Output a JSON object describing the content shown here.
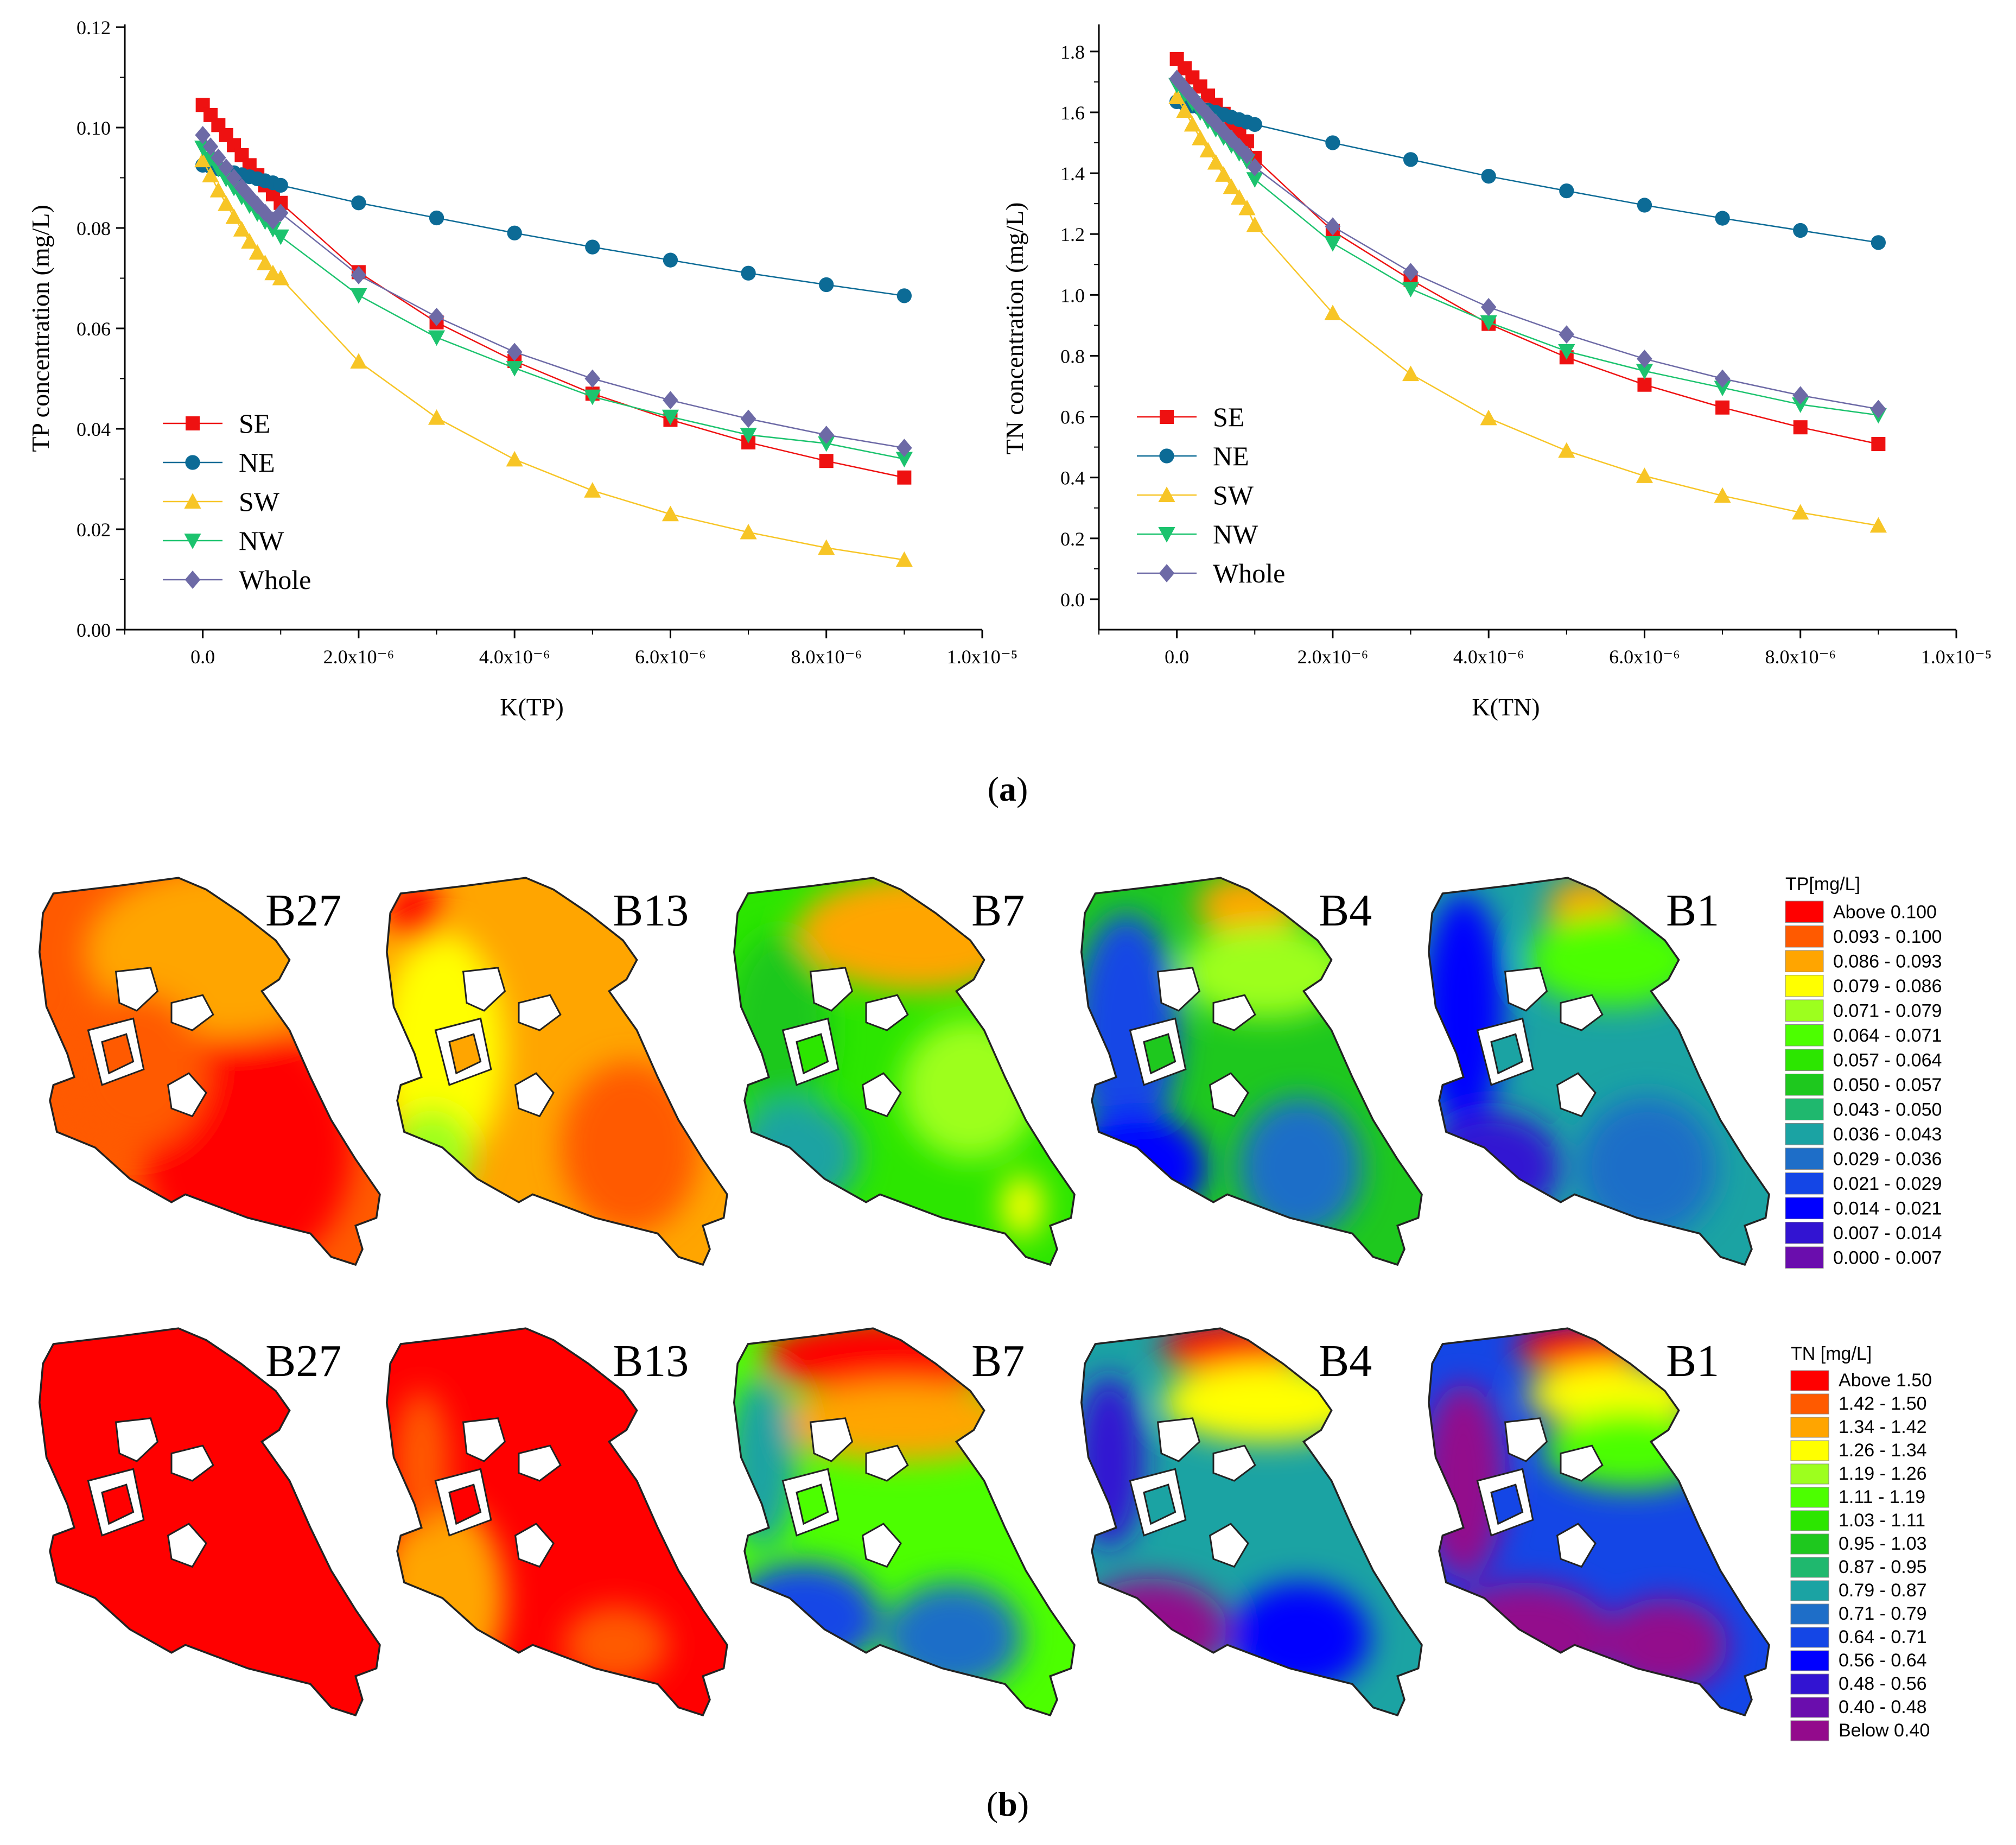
{
  "panel_a_label": "a",
  "panel_b_label": "b",
  "colors": {
    "SE": "#ee1111",
    "NE": "#0c6b96",
    "SW": "#f7c526",
    "NW": "#1cc36e",
    "Whole": "#6d6aa6"
  },
  "chart_data": [
    {
      "type": "line",
      "ylabel": "TP concentration (mg/L)",
      "xlabel": "K(TP)",
      "xlim": [
        -1e-06,
        1e-05
      ],
      "ylim": [
        0,
        0.12
      ],
      "xticks": [
        0,
        2e-06,
        4e-06,
        6e-06,
        8e-06,
        1e-05
      ],
      "xtick_labels": [
        "0.0",
        "2.0x10⁻⁶",
        "4.0x10⁻⁶",
        "6.0x10⁻⁶",
        "8.0x10⁻⁶",
        "1.0x10⁻⁵"
      ],
      "yticks": [
        0,
        0.02,
        0.04,
        0.06,
        0.08,
        0.1,
        0.12
      ],
      "ytick_labels": [
        "0.00",
        "0.02",
        "0.04",
        "0.06",
        "0.08",
        "0.10",
        "0.12"
      ],
      "x": [
        0,
        1e-07,
        2e-07,
        3e-07,
        4e-07,
        5e-07,
        6e-07,
        7e-07,
        8e-07,
        9e-07,
        1e-06,
        2e-06,
        3e-06,
        4e-06,
        5e-06,
        6e-06,
        7e-06,
        8e-06,
        9e-06
      ],
      "series": [
        {
          "name": "SE",
          "marker": "square",
          "values": [
            0.1045,
            0.1025,
            0.1005,
            0.0985,
            0.0965,
            0.0945,
            0.0925,
            0.0905,
            0.0885,
            0.0867,
            0.085,
            0.0712,
            0.0612,
            0.0535,
            0.047,
            0.0418,
            0.0373,
            0.0336,
            0.0303
          ]
        },
        {
          "name": "NE",
          "marker": "circle",
          "values": [
            0.0925,
            0.0922,
            0.0918,
            0.0914,
            0.091,
            0.0906,
            0.0902,
            0.0898,
            0.0894,
            0.089,
            0.0885,
            0.085,
            0.082,
            0.079,
            0.0762,
            0.0736,
            0.071,
            0.0687,
            0.0665
          ]
        },
        {
          "name": "SW",
          "marker": "triangle-up",
          "values": [
            0.0935,
            0.0905,
            0.0875,
            0.0848,
            0.0822,
            0.0797,
            0.0773,
            0.0751,
            0.073,
            0.071,
            0.07,
            0.0534,
            0.0422,
            0.0339,
            0.0277,
            0.023,
            0.0194,
            0.0163,
            0.0139
          ]
        },
        {
          "name": "NW",
          "marker": "triangle-down",
          "values": [
            0.096,
            0.0938,
            0.0918,
            0.0898,
            0.088,
            0.0862,
            0.0845,
            0.0829,
            0.0813,
            0.0798,
            0.0783,
            0.0666,
            0.0582,
            0.0521,
            0.0464,
            0.0424,
            0.0388,
            0.0371,
            0.034
          ]
        },
        {
          "name": "Whole",
          "marker": "diamond",
          "values": [
            0.0985,
            0.0962,
            0.094,
            0.092,
            0.09,
            0.0881,
            0.0863,
            0.0846,
            0.083,
            0.0815,
            0.083,
            0.0706,
            0.0623,
            0.0553,
            0.05,
            0.0457,
            0.042,
            0.0388,
            0.0362
          ]
        }
      ]
    },
    {
      "type": "line",
      "ylabel": "TN concentration (mg/L)",
      "xlabel": "K(TN)",
      "xlim": [
        -1e-06,
        1e-05
      ],
      "ylim": [
        -0.1,
        1.88
      ],
      "xticks": [
        0,
        2e-06,
        4e-06,
        6e-06,
        8e-06,
        1e-05
      ],
      "xtick_labels": [
        "0.0",
        "2.0x10⁻⁶",
        "4.0x10⁻⁶",
        "6.0x10⁻⁶",
        "8.0x10⁻⁶",
        "1.0x10⁻⁵"
      ],
      "yticks": [
        0,
        0.2,
        0.4,
        0.6,
        0.8,
        1.0,
        1.2,
        1.4,
        1.6,
        1.8
      ],
      "ytick_labels": [
        "0.0",
        "0.2",
        "0.4",
        "0.6",
        "0.8",
        "1.0",
        "1.2",
        "1.4",
        "1.6",
        "1.8"
      ],
      "x": [
        0,
        1e-07,
        2e-07,
        3e-07,
        4e-07,
        5e-07,
        6e-07,
        7e-07,
        8e-07,
        9e-07,
        1e-06,
        2e-06,
        3e-06,
        4e-06,
        5e-06,
        6e-06,
        7e-06,
        8e-06,
        9e-06
      ],
      "series": [
        {
          "name": "SE",
          "marker": "square",
          "values": [
            1.775,
            1.745,
            1.715,
            1.685,
            1.655,
            1.625,
            1.595,
            1.565,
            1.535,
            1.505,
            1.45,
            1.21,
            1.05,
            0.905,
            0.795,
            0.705,
            0.63,
            0.565,
            0.51
          ]
        },
        {
          "name": "NE",
          "marker": "circle",
          "values": [
            1.635,
            1.628,
            1.621,
            1.614,
            1.607,
            1.6,
            1.592,
            1.584,
            1.576,
            1.568,
            1.56,
            1.5,
            1.445,
            1.39,
            1.342,
            1.295,
            1.252,
            1.212,
            1.172
          ]
        },
        {
          "name": "SW",
          "marker": "triangle-up",
          "values": [
            1.65,
            1.605,
            1.56,
            1.515,
            1.475,
            1.435,
            1.395,
            1.355,
            1.32,
            1.285,
            1.23,
            0.94,
            0.74,
            0.595,
            0.488,
            0.405,
            0.34,
            0.285,
            0.242
          ]
        },
        {
          "name": "NW",
          "marker": "triangle-down",
          "values": [
            1.69,
            1.66,
            1.63,
            1.6,
            1.572,
            1.545,
            1.518,
            1.492,
            1.466,
            1.44,
            1.38,
            1.17,
            1.02,
            0.91,
            0.815,
            0.75,
            0.695,
            0.64,
            0.605
          ]
        },
        {
          "name": "Whole",
          "marker": "diamond",
          "values": [
            1.71,
            1.68,
            1.65,
            1.62,
            1.592,
            1.565,
            1.538,
            1.512,
            1.486,
            1.46,
            1.42,
            1.225,
            1.075,
            0.96,
            0.87,
            0.79,
            0.725,
            0.67,
            0.625
          ]
        }
      ]
    }
  ],
  "maps": {
    "row_labels": [
      "B27",
      "B13",
      "B7",
      "B4",
      "B1"
    ],
    "tp_legend": {
      "title": "TP[mg/L]",
      "items": [
        {
          "label": "Above  0.100",
          "color": "#ff0000"
        },
        {
          "label": "0.093 - 0.100",
          "color": "#ff5a00"
        },
        {
          "label": "0.086 - 0.093",
          "color": "#ffa500"
        },
        {
          "label": "0.079 - 0.086",
          "color": "#ffff00"
        },
        {
          "label": "0.071 - 0.079",
          "color": "#9dff1e"
        },
        {
          "label": "0.064 - 0.071",
          "color": "#4cff00"
        },
        {
          "label": "0.057 - 0.064",
          "color": "#2ce600"
        },
        {
          "label": "0.050 - 0.057",
          "color": "#1ec81e"
        },
        {
          "label": "0.043 - 0.050",
          "color": "#1fb86e"
        },
        {
          "label": "0.036 - 0.043",
          "color": "#1ba3a3"
        },
        {
          "label": "0.029 - 0.036",
          "color": "#1e6ec8"
        },
        {
          "label": "0.021 - 0.029",
          "color": "#1446e6"
        },
        {
          "label": "0.014 - 0.021",
          "color": "#0000ff"
        },
        {
          "label": "0.007 - 0.014",
          "color": "#3214d2"
        },
        {
          "label": "0.000 - 0.007",
          "color": "#6a0dad"
        }
      ]
    },
    "tn_legend": {
      "title": "TN [mg/L]",
      "items": [
        {
          "label": "Above 1.50",
          "color": "#ff0000"
        },
        {
          "label": "1.42 - 1.50",
          "color": "#ff5a00"
        },
        {
          "label": "1.34 - 1.42",
          "color": "#ffa500"
        },
        {
          "label": "1.26 - 1.34",
          "color": "#ffff00"
        },
        {
          "label": "1.19 - 1.26",
          "color": "#9dff1e"
        },
        {
          "label": "1.11 - 1.19",
          "color": "#4cff00"
        },
        {
          "label": "1.03 - 1.11",
          "color": "#2ce600"
        },
        {
          "label": "0.95 - 1.03",
          "color": "#1ec81e"
        },
        {
          "label": "0.87 - 0.95",
          "color": "#1fb86e"
        },
        {
          "label": "0.79 - 0.87",
          "color": "#1ba3a3"
        },
        {
          "label": "0.71 - 0.79",
          "color": "#1e6ec8"
        },
        {
          "label": "0.64 - 0.71",
          "color": "#1446e6"
        },
        {
          "label": "0.56 - 0.64",
          "color": "#0000ff"
        },
        {
          "label": "0.48 - 0.56",
          "color": "#3214d2"
        },
        {
          "label": "0.40 - 0.48",
          "color": "#6a0dad"
        },
        {
          "label": "Below 0.40",
          "color": "#930a8c"
        }
      ]
    },
    "tp_fields": [
      {
        "base": "#ff5a00",
        "blobs": [
          [
            "#ff0000",
            0.62,
            0.7,
            0.3,
            0.32
          ],
          [
            "#ffa500",
            0.55,
            0.2,
            0.4,
            0.22
          ],
          [
            "#ff5a00",
            0.3,
            0.5,
            0.2,
            0.2
          ]
        ]
      },
      {
        "base": "#ffa500",
        "blobs": [
          [
            "#ffff00",
            0.18,
            0.45,
            0.18,
            0.3
          ],
          [
            "#9dff1e",
            0.15,
            0.72,
            0.12,
            0.12
          ],
          [
            "#ff5a00",
            0.72,
            0.7,
            0.2,
            0.22
          ],
          [
            "#ff0000",
            0.1,
            0.1,
            0.08,
            0.08
          ]
        ]
      },
      {
        "base": "#2ce600",
        "blobs": [
          [
            "#ffa500",
            0.55,
            0.15,
            0.35,
            0.15
          ],
          [
            "#1ec81e",
            0.15,
            0.4,
            0.15,
            0.25
          ],
          [
            "#1ba3a3",
            0.2,
            0.72,
            0.18,
            0.14
          ],
          [
            "#9dff1e",
            0.7,
            0.55,
            0.2,
            0.18
          ],
          [
            "#ffff00",
            0.85,
            0.85,
            0.06,
            0.08
          ]
        ]
      },
      {
        "base": "#1ec81e",
        "blobs": [
          [
            "#1446e6",
            0.15,
            0.4,
            0.15,
            0.3
          ],
          [
            "#0000ff",
            0.18,
            0.75,
            0.2,
            0.14
          ],
          [
            "#ffa500",
            0.5,
            0.08,
            0.15,
            0.08
          ],
          [
            "#9dff1e",
            0.55,
            0.25,
            0.25,
            0.12
          ],
          [
            "#1e6ec8",
            0.65,
            0.75,
            0.18,
            0.18
          ]
        ]
      },
      {
        "base": "#1ba3a3",
        "blobs": [
          [
            "#0000ff",
            0.12,
            0.35,
            0.12,
            0.3
          ],
          [
            "#3214d2",
            0.2,
            0.75,
            0.2,
            0.14
          ],
          [
            "#ffa500",
            0.48,
            0.08,
            0.12,
            0.07
          ],
          [
            "#4cff00",
            0.55,
            0.22,
            0.25,
            0.12
          ],
          [
            "#1e6ec8",
            0.65,
            0.75,
            0.2,
            0.18
          ]
        ]
      }
    ],
    "tn_fields": [
      {
        "base": "#ff0000",
        "blobs": []
      },
      {
        "base": "#ff0000",
        "blobs": [
          [
            "#ffa500",
            0.18,
            0.7,
            0.18,
            0.25
          ],
          [
            "#ff5a00",
            0.12,
            0.35,
            0.08,
            0.18
          ],
          [
            "#ff5a00",
            0.68,
            0.82,
            0.15,
            0.1
          ]
        ]
      },
      {
        "base": "#4cff00",
        "blobs": [
          [
            "#ff0000",
            0.45,
            0.08,
            0.35,
            0.1
          ],
          [
            "#ffa500",
            0.5,
            0.25,
            0.35,
            0.1
          ],
          [
            "#1ba3a3",
            0.1,
            0.35,
            0.1,
            0.22
          ],
          [
            "#1446e6",
            0.22,
            0.75,
            0.22,
            0.14
          ],
          [
            "#1e6ec8",
            0.65,
            0.8,
            0.2,
            0.14
          ]
        ]
      },
      {
        "base": "#1ba3a3",
        "blobs": [
          [
            "#ff0000",
            0.45,
            0.06,
            0.2,
            0.07
          ],
          [
            "#ffff00",
            0.55,
            0.2,
            0.3,
            0.1
          ],
          [
            "#3214d2",
            0.1,
            0.35,
            0.1,
            0.22
          ],
          [
            "#930a8c",
            0.22,
            0.78,
            0.22,
            0.13
          ],
          [
            "#0000ff",
            0.65,
            0.8,
            0.2,
            0.14
          ]
        ]
      },
      {
        "base": "#1446e6",
        "blobs": [
          [
            "#ff0000",
            0.45,
            0.06,
            0.18,
            0.06
          ],
          [
            "#ffff00",
            0.55,
            0.18,
            0.25,
            0.08
          ],
          [
            "#4cff00",
            0.6,
            0.32,
            0.25,
            0.1
          ],
          [
            "#930a8c",
            0.12,
            0.4,
            0.12,
            0.25
          ],
          [
            "#930a8c",
            0.3,
            0.8,
            0.25,
            0.14
          ],
          [
            "#930a8c",
            0.7,
            0.82,
            0.18,
            0.12
          ]
        ]
      }
    ]
  }
}
